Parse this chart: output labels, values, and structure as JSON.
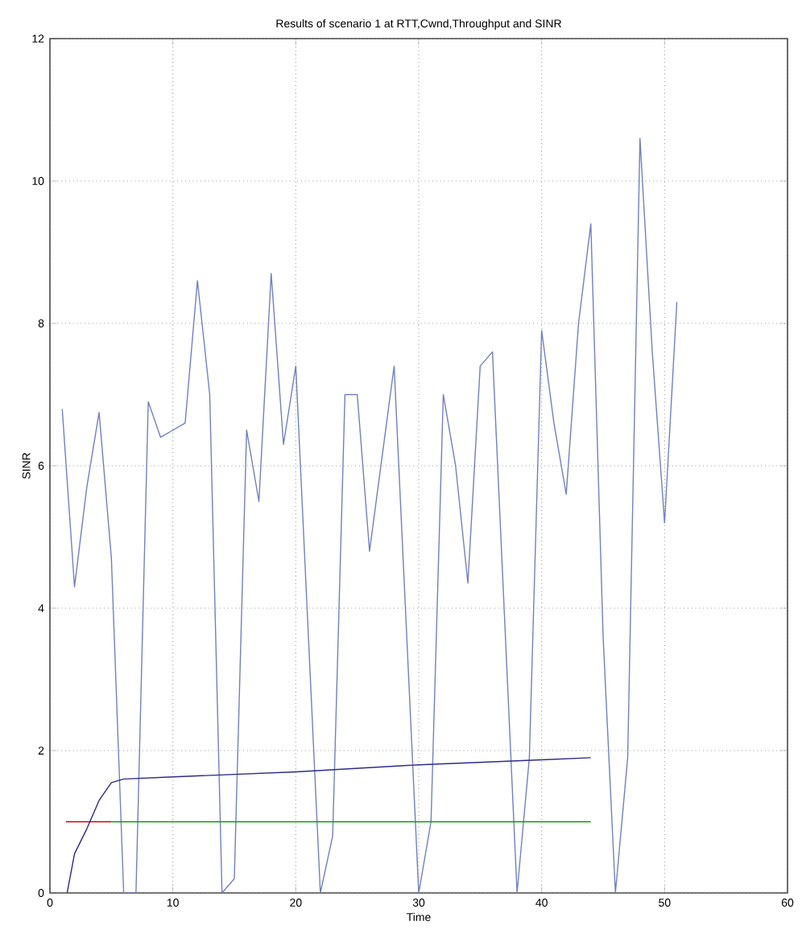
{
  "chart_data": {
    "type": "line",
    "title": "Results of scenario 1 at RTT,Cwnd,Throughput and SINR",
    "xlabel": "Time",
    "ylabel": "SINR",
    "xlim": [
      0,
      60
    ],
    "xticks": [
      0,
      10,
      20,
      30,
      40,
      50,
      60
    ],
    "ylim": [
      0,
      12
    ],
    "yticks": [
      0,
      2,
      4,
      6,
      8,
      10,
      12
    ],
    "grid": true,
    "line_style": "solid",
    "marker": "none",
    "series": [
      {
        "color": "#7080c0",
        "x": [
          1,
          2,
          3,
          4,
          5,
          6,
          7,
          8,
          9,
          10,
          11,
          12,
          13,
          14,
          15,
          16,
          17,
          18,
          19,
          20,
          21,
          22,
          23,
          24,
          25,
          26,
          27,
          28,
          29,
          30,
          31,
          32,
          33,
          34,
          35,
          36,
          37,
          38,
          39,
          40,
          41,
          42,
          43,
          44,
          45,
          46,
          47,
          48,
          49,
          50,
          51
        ],
        "values": [
          6.8,
          4.3,
          5.7,
          6.75,
          4.7,
          0,
          0,
          6.9,
          6.4,
          6.5,
          6.6,
          8.6,
          7.0,
          0,
          0.2,
          6.5,
          5.5,
          8.7,
          6.3,
          7.4,
          3.7,
          0,
          0.8,
          7.0,
          7.0,
          4.8,
          6.1,
          7.4,
          3.7,
          0,
          1.0,
          7.0,
          6.0,
          4.35,
          7.4,
          7.6,
          3.8,
          0,
          1.9,
          7.9,
          6.6,
          5.6,
          8.0,
          9.4,
          3.6,
          0,
          1.9,
          10.6,
          7.6,
          5.2,
          8.3
        ]
      },
      {
        "color": "#2b2b8c",
        "x": [
          1.4,
          2,
          3,
          4,
          5,
          6,
          10,
          20,
          30,
          40,
          44
        ],
        "values": [
          0,
          0.55,
          0.9,
          1.3,
          1.55,
          1.6,
          1.63,
          1.7,
          1.8,
          1.87,
          1.9
        ]
      },
      {
        "color": "#00a000",
        "x": [
          5,
          44
        ],
        "values": [
          1,
          1
        ]
      },
      {
        "color": "#cc0000",
        "x": [
          1.3,
          5
        ],
        "values": [
          1,
          1
        ]
      }
    ]
  }
}
